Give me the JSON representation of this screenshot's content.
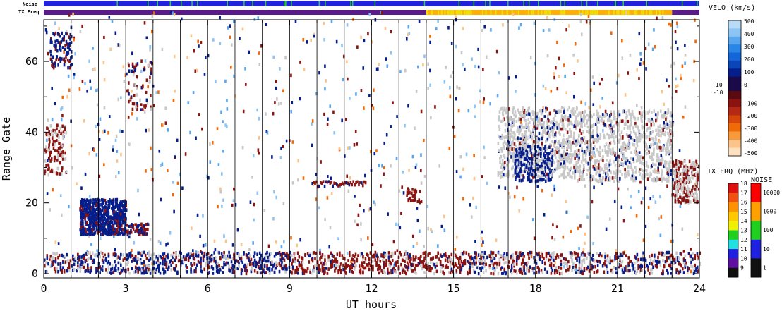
{
  "chart_data": {
    "type": "heatmap",
    "title": "",
    "xlabel": "UT hours",
    "ylabel": "Range Gate",
    "xlim": [
      0,
      24
    ],
    "ylim": [
      0,
      75
    ],
    "x_ticks": [
      0,
      3,
      6,
      9,
      12,
      15,
      18,
      21,
      24
    ],
    "y_ticks": [
      0,
      20,
      40,
      60
    ],
    "x_tick_labels": [
      "0",
      "3",
      "6",
      "9",
      "12",
      "15",
      "18",
      "21",
      "24"
    ],
    "y_tick_labels": [
      "0",
      "20",
      "40",
      "60"
    ],
    "hour_gridlines": [
      1,
      2,
      3,
      4,
      5,
      6,
      7,
      8,
      9,
      10,
      11,
      12,
      13,
      14,
      15,
      16,
      17,
      18,
      19,
      20,
      21,
      22,
      23
    ],
    "top_strips": {
      "noise_label": "Noise",
      "txfreq_label": "TX Freq",
      "noise_color": "#2222dd",
      "noise_spike_color": "#33cc33",
      "txfreq_segments": [
        {
          "start": 0,
          "end": 14,
          "mhz": 10,
          "color": "#5a1a8c"
        },
        {
          "start": 14,
          "end": 23,
          "mhz": 15,
          "color": "#ffb000"
        },
        {
          "start": 23,
          "end": 24,
          "mhz": 10,
          "color": "#5a1a8c"
        }
      ]
    },
    "velocity_scale": {
      "title": "VELO (km/s)",
      "positive_labels": [
        "500",
        "400",
        "300",
        "200",
        "100",
        "0"
      ],
      "positive_label_values": [
        500,
        400,
        300,
        200,
        100,
        0
      ],
      "negative_labels": [
        "-100",
        "-200",
        "-300",
        "-400",
        "-500"
      ],
      "negative_label_values": [
        -100,
        -200,
        -300,
        -400,
        -500
      ],
      "threshold_labels": [
        "10",
        "-10"
      ],
      "colors_high_to_low": [
        "#b8dcf8",
        "#8cc4f4",
        "#5aa6ee",
        "#2a86e6",
        "#1466d8",
        "#0a46b8",
        "#061e8c",
        "#1a0a4a",
        "#5a0a10",
        "#8c1410",
        "#b42814",
        "#d4460a",
        "#f06a0a",
        "#f69a3c",
        "#fac48a",
        "#fde0c0"
      ]
    },
    "txfreq_scale": {
      "title": "TX FRQ (MHz)",
      "labels": [
        "18",
        "17",
        "16",
        "15",
        "14",
        "13",
        "12",
        "11",
        "10",
        "9"
      ],
      "colors": [
        "#e01010",
        "#f05010",
        "#ff9000",
        "#ffc800",
        "#f0f000",
        "#20d020",
        "#20e0e0",
        "#2020e0",
        "#6010a0",
        "#101010"
      ]
    },
    "noise_scale": {
      "title": "NOISE",
      "labels": [
        "10000",
        "1000",
        "100",
        "10",
        "1"
      ],
      "colors": [
        "#ff0000",
        "#ffa000",
        "#20d020",
        "#2020e0",
        "#101010"
      ]
    },
    "series": [
      {
        "name": "",
        "description": "low range gate band",
        "x_range": [
          0,
          24
        ],
        "gate_range": [
          0,
          5
        ],
        "colors": [
          "#8c1410",
          "#061e8c",
          "#c8c8c8"
        ]
      },
      {
        "name": "",
        "description": "ground scatter morning",
        "x_range": [
          1,
          4
        ],
        "gate_range": [
          10,
          22
        ],
        "colors": [
          "#061e8c"
        ]
      },
      {
        "name": "",
        "description": "early near-range patches",
        "x_range": [
          0,
          1
        ],
        "gate_range": [
          28,
          68
        ],
        "colors": [
          "#8c1410",
          "#061e8c",
          "#c8c8c8"
        ]
      },
      {
        "name": "",
        "description": "afternoon grey band",
        "x_range": [
          17,
          24
        ],
        "gate_range": [
          20,
          48
        ],
        "colors": [
          "#c8c8c8",
          "#061e8c",
          "#8c1410"
        ]
      },
      {
        "name": "",
        "description": "mid-day segment",
        "x_range": [
          9.8,
          11.8
        ],
        "gate_range": [
          24,
          26
        ],
        "colors": [
          "#8c1410"
        ]
      }
    ]
  }
}
